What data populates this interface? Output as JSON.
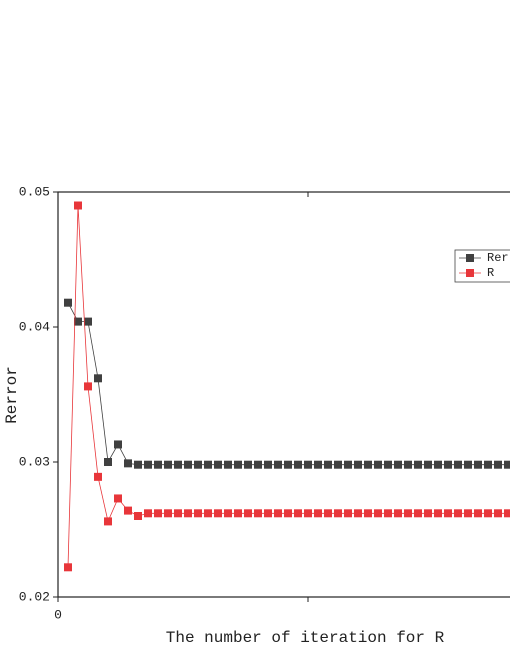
{
  "chart_data": {
    "type": "line",
    "x_label": "The number of iteration for R",
    "y_label": "Rerror",
    "x": [
      1,
      2,
      3,
      4,
      5,
      6,
      7,
      8,
      9,
      10,
      11,
      12,
      13,
      14,
      15,
      16,
      17,
      18,
      19,
      20,
      21,
      22,
      23,
      24,
      25,
      26,
      27,
      28,
      29,
      30,
      31,
      32,
      33,
      34,
      35,
      36,
      37,
      38,
      39,
      40,
      41,
      42,
      43,
      44,
      45
    ],
    "series": [
      {
        "name": "Rerror",
        "color": "#404040",
        "values": [
          0.0418,
          0.0404,
          0.0404,
          0.0362,
          0.03,
          0.0313,
          0.0299,
          0.0298,
          0.0298,
          0.0298,
          0.0298,
          0.0298,
          0.0298,
          0.0298,
          0.0298,
          0.0298,
          0.0298,
          0.0298,
          0.0298,
          0.0298,
          0.0298,
          0.0298,
          0.0298,
          0.0298,
          0.0298,
          0.0298,
          0.0298,
          0.0298,
          0.0298,
          0.0298,
          0.0298,
          0.0298,
          0.0298,
          0.0298,
          0.0298,
          0.0298,
          0.0298,
          0.0298,
          0.0298,
          0.0298,
          0.0298,
          0.0298,
          0.0298,
          0.0298,
          0.0298
        ]
      },
      {
        "name": "R",
        "color": "#e8363a",
        "values": [
          0.0222,
          0.049,
          0.0356,
          0.0289,
          0.0256,
          0.0273,
          0.0264,
          0.026,
          0.0262,
          0.0262,
          0.0262,
          0.0262,
          0.0262,
          0.0262,
          0.0262,
          0.0262,
          0.0262,
          0.0262,
          0.0262,
          0.0262,
          0.0262,
          0.0262,
          0.0262,
          0.0262,
          0.0262,
          0.0262,
          0.0262,
          0.0262,
          0.0262,
          0.0262,
          0.0262,
          0.0262,
          0.0262,
          0.0262,
          0.0262,
          0.0262,
          0.0262,
          0.0262,
          0.0262,
          0.0262,
          0.0262,
          0.0262,
          0.0262,
          0.0262,
          0.0262
        ]
      }
    ],
    "xlim": [
      0,
      50
    ],
    "xticks": [
      0,
      {
        "value": 25,
        "label": null
      }
    ],
    "ylim": [
      0.02,
      0.05
    ],
    "yticks": [
      0.02,
      0.03,
      0.04,
      0.05
    ],
    "legend": "upper right"
  }
}
